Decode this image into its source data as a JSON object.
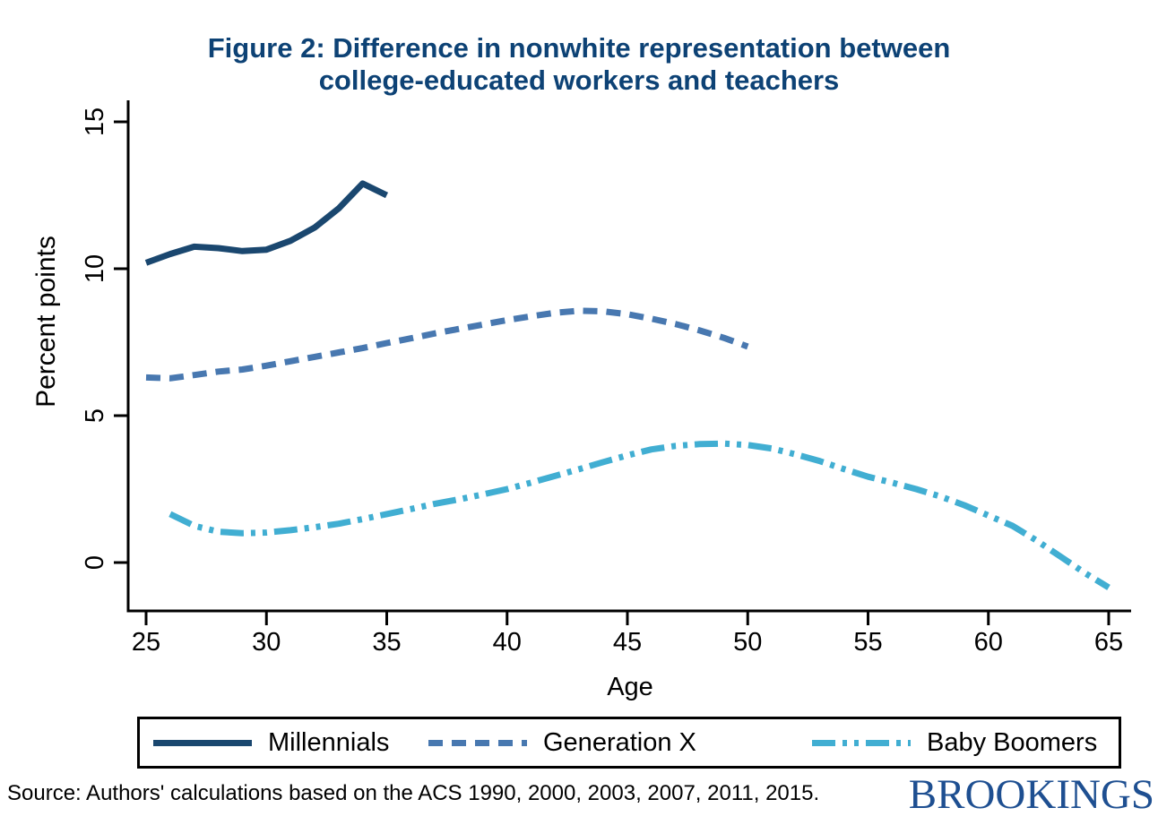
{
  "title": {
    "line1": "Figure 2: Difference in nonwhite representation between",
    "line2": "college-educated workers and teachers"
  },
  "chart_data": {
    "type": "line",
    "title": "Figure 2: Difference in nonwhite representation between college-educated workers and teachers",
    "xlabel": "Age",
    "ylabel": "Percent points",
    "x_ticks": [
      25,
      30,
      35,
      40,
      45,
      50,
      55,
      60,
      65
    ],
    "y_ticks": [
      0,
      5,
      10,
      15
    ],
    "xlim": [
      24.3,
      65.9
    ],
    "ylim": [
      -1.7,
      15.6
    ],
    "grid": false,
    "legend_position": "bottom-box",
    "title_color": "#0d4275",
    "series": [
      {
        "name": "Millennials",
        "color": "#1a476f",
        "dash": "solid",
        "x": [
          25,
          26,
          27,
          28,
          29,
          30,
          31,
          32,
          33,
          34,
          35
        ],
        "y": [
          10.2,
          10.5,
          10.75,
          10.7,
          10.6,
          10.65,
          10.95,
          11.4,
          12.05,
          12.9,
          12.5
        ]
      },
      {
        "name": "Generation X",
        "color": "#4878b0",
        "dash": "dashed",
        "x": [
          25,
          26,
          27,
          28,
          29,
          30,
          31,
          32,
          33,
          34,
          35,
          36,
          37,
          38,
          39,
          40,
          41,
          42,
          43,
          44,
          45,
          46,
          47,
          48,
          49,
          50
        ],
        "y": [
          6.3,
          6.27,
          6.38,
          6.5,
          6.57,
          6.7,
          6.85,
          7.0,
          7.15,
          7.3,
          7.47,
          7.63,
          7.8,
          7.95,
          8.1,
          8.25,
          8.38,
          8.5,
          8.57,
          8.55,
          8.45,
          8.3,
          8.12,
          7.9,
          7.65,
          7.35
        ]
      },
      {
        "name": "Baby Boomers",
        "color": "#41aed2",
        "dash": "dash-dot-dot",
        "x": [
          26,
          27,
          28,
          29,
          30,
          31,
          32,
          33,
          34,
          35,
          36,
          37,
          38,
          39,
          40,
          41,
          42,
          43,
          44,
          45,
          46,
          47,
          48,
          49,
          50,
          51,
          52,
          53,
          54,
          55,
          56,
          57,
          58,
          59,
          60,
          61,
          62,
          63,
          64,
          65
        ],
        "y": [
          1.65,
          1.25,
          1.05,
          1.0,
          1.02,
          1.1,
          1.2,
          1.32,
          1.48,
          1.65,
          1.82,
          2.0,
          2.15,
          2.32,
          2.5,
          2.72,
          2.95,
          3.18,
          3.42,
          3.65,
          3.85,
          3.97,
          4.03,
          4.05,
          4.0,
          3.88,
          3.68,
          3.45,
          3.18,
          2.92,
          2.72,
          2.5,
          2.25,
          1.95,
          1.6,
          1.25,
          0.75,
          0.2,
          -0.35,
          -0.85
        ]
      }
    ]
  },
  "footer": {
    "source": "Source: Authors' calculations based on the ACS 1990, 2000, 2003, 2007, 2011, 2015.",
    "brand": "BROOKINGS"
  }
}
